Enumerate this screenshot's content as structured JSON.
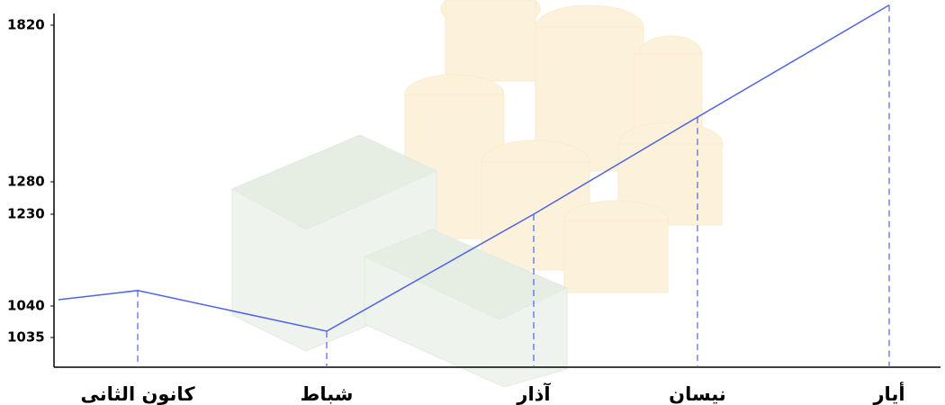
{
  "chart_data": {
    "type": "line",
    "categories": [
      null,
      "كانون الثانى",
      "شباط",
      "آذار",
      "نيسان",
      "أيار"
    ],
    "values": [
      1053,
      1072,
      1036,
      1230,
      1503,
      1876
    ],
    "color": "#4f63e6",
    "ylim": [
      1030,
      1880
    ],
    "yticks": [
      1035,
      1040,
      1230,
      1280,
      1820
    ],
    "drop_lines": true
  }
}
